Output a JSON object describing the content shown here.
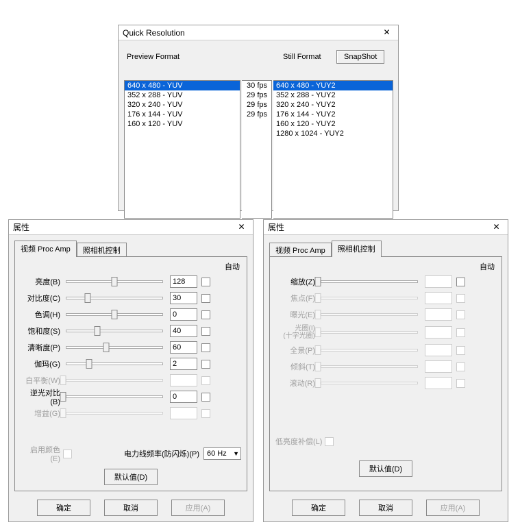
{
  "quick_resolution": {
    "title": "Quick Resolution",
    "preview_label": "Preview Format",
    "still_label": "Still Format",
    "snapshot_label": "SnapShot",
    "preview_items": [
      {
        "text": "640 x  480 - YUV",
        "selected": true
      },
      {
        "text": "352 x  288 - YUV",
        "selected": false
      },
      {
        "text": "320 x  240 - YUV",
        "selected": false
      },
      {
        "text": "176 x  144 - YUV",
        "selected": false
      },
      {
        "text": "160 x  120 - YUV",
        "selected": false
      }
    ],
    "fps_items": [
      "30 fps",
      "29 fps",
      "29 fps",
      "29 fps"
    ],
    "still_items": [
      {
        "text": "640 x 480 - YUY2",
        "selected": true
      },
      {
        "text": "352 x 288 - YUY2",
        "selected": false
      },
      {
        "text": "320 x 240 - YUY2",
        "selected": false
      },
      {
        "text": "176 x 144 - YUY2",
        "selected": false
      },
      {
        "text": "160 x 120 - YUY2",
        "selected": false
      },
      {
        "text": "1280 x 1024 - YUY2",
        "selected": false
      }
    ]
  },
  "properties": {
    "title": "属性",
    "tab_proc_amp": "视频 Proc Amp",
    "tab_camera": "照相机控制",
    "auto_header": "自动",
    "defaults_btn": "默认值(D)",
    "ok_btn": "确定",
    "cancel_btn": "取消",
    "apply_btn": "应用(A)",
    "proc_amp": {
      "rows": [
        {
          "label": "亮度(B)",
          "value": "128",
          "pos": 50,
          "enabled": true
        },
        {
          "label": "对比度(C)",
          "value": "30",
          "pos": 24,
          "enabled": true
        },
        {
          "label": "色调(H)",
          "value": "0",
          "pos": 50,
          "enabled": true
        },
        {
          "label": "饱和度(S)",
          "value": "40",
          "pos": 33,
          "enabled": true
        },
        {
          "label": "清晰度(P)",
          "value": "60",
          "pos": 42,
          "enabled": true
        },
        {
          "label": "伽玛(G)",
          "value": "2",
          "pos": 25,
          "enabled": true
        },
        {
          "label": "白平衡(W)",
          "value": "",
          "pos": 0,
          "enabled": false
        },
        {
          "label": "逆光对比(B)",
          "value": "0",
          "pos": 0,
          "enabled": true
        },
        {
          "label": "增益(G)",
          "value": "",
          "pos": 0,
          "enabled": false
        }
      ],
      "enable_color_label": "启用颜色(E)",
      "powerline_label": "电力线频率(防闪烁)(P)",
      "powerline_value": "60 Hz"
    },
    "camera": {
      "rows": [
        {
          "label": "缩放(Z)",
          "enabled": true
        },
        {
          "label": "焦点(F)",
          "enabled": false
        },
        {
          "label": "曝光(E)",
          "enabled": false
        },
        {
          "label": "光圈(I)\n(十字光圈)",
          "enabled": false,
          "two_line": true
        },
        {
          "label": "全景(P)",
          "enabled": false
        },
        {
          "label": "倾斜(T)",
          "enabled": false
        },
        {
          "label": "滚动(R)",
          "enabled": false
        }
      ],
      "low_light_label": "低亮度补偿(L)"
    }
  }
}
